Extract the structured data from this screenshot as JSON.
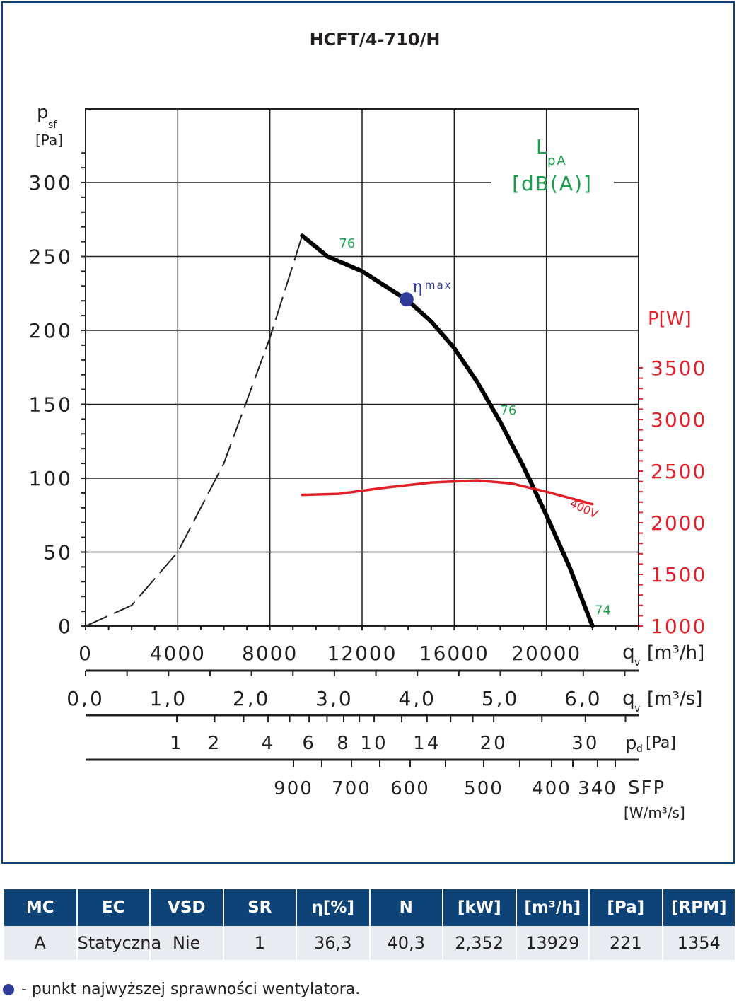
{
  "chart_data": {
    "type": "line",
    "title": "HCFT/4-710/H",
    "y_axis": {
      "label_main": "p",
      "label_sub": "sf",
      "unit": "[Pa]",
      "range": [
        0,
        300
      ],
      "ticks": [
        "0",
        "50",
        "100",
        "150",
        "200",
        "250",
        "300"
      ]
    },
    "x_axis": {
      "label_main": "q",
      "label_sub": "v",
      "unit": "[m³/h]",
      "range": [
        0,
        24000
      ],
      "ticks": [
        "0",
        "4000",
        "8000",
        "12000",
        "16000",
        "20000"
      ]
    },
    "power_axis": {
      "label": "P[W]",
      "range": [
        1000,
        3500
      ],
      "ticks": [
        "1000",
        "1500",
        "2000",
        "2500",
        "3000",
        "3500"
      ]
    },
    "sound_label": {
      "line1": "L",
      "sub": "pA",
      "line2": "[dB(A)]"
    },
    "series": [
      {
        "kind": "pressure-curve",
        "points": [
          [
            9400,
            264
          ],
          [
            10500,
            250
          ],
          [
            12000,
            240
          ],
          [
            13000,
            230
          ],
          [
            14000,
            220
          ],
          [
            15000,
            206
          ],
          [
            16000,
            188
          ],
          [
            17000,
            165
          ],
          [
            18000,
            138
          ],
          [
            19000,
            108
          ],
          [
            20000,
            75
          ],
          [
            21000,
            40
          ],
          [
            22000,
            0
          ]
        ]
      },
      {
        "kind": "system-curve",
        "points": [
          [
            0,
            0
          ],
          [
            2000,
            14
          ],
          [
            4000,
            50
          ],
          [
            6000,
            110
          ],
          [
            8000,
            195
          ],
          [
            9400,
            264
          ]
        ]
      },
      {
        "name": "400V",
        "kind": "power-curve",
        "points": [
          [
            9400,
            2270
          ],
          [
            11000,
            2280
          ],
          [
            13000,
            2340
          ],
          [
            15000,
            2390
          ],
          [
            17000,
            2410
          ],
          [
            18500,
            2380
          ],
          [
            20000,
            2300
          ],
          [
            22000,
            2180
          ]
        ]
      }
    ],
    "sound_levels": [
      {
        "x": 11000,
        "y": 256,
        "label": "76"
      },
      {
        "x": 18000,
        "y": 143,
        "label": "76"
      },
      {
        "x": 22100,
        "y": 8,
        "label": "74"
      }
    ],
    "eta_max": {
      "x": 13929,
      "y": 221,
      "label": "η",
      "label_sub": "max"
    },
    "secondary_scales": [
      {
        "id": "qv-m3s",
        "label_main": "q",
        "label_sub": "v",
        "unit": "[m³/s]",
        "ticks": [
          {
            "value": 0,
            "label": "0,0"
          },
          {
            "value": 1,
            "label": "1,0"
          },
          {
            "value": 2,
            "label": "2,0"
          },
          {
            "value": 3,
            "label": "3,0"
          },
          {
            "value": 4,
            "label": "4,0"
          },
          {
            "value": 5,
            "label": "5,0"
          },
          {
            "value": 6,
            "label": "6,0"
          }
        ]
      },
      {
        "id": "pd",
        "label_main": "p",
        "label_sub": "d",
        "unit": "[Pa]",
        "ticks": [
          {
            "value": 1,
            "label": "1"
          },
          {
            "value": 2,
            "label": "2"
          },
          {
            "value": 4,
            "label": "4"
          },
          {
            "value": 6,
            "label": "6"
          },
          {
            "value": 8,
            "label": "8"
          },
          {
            "value": 10,
            "label": "10"
          },
          {
            "value": 14,
            "label": "14"
          },
          {
            "value": 20,
            "label": "20"
          },
          {
            "value": 30,
            "label": "30"
          }
        ]
      },
      {
        "id": "sfp",
        "label_main": "SFP",
        "unit": "[W/m³/s]",
        "ticks": [
          {
            "value": 900,
            "label": "900"
          },
          {
            "value": 700,
            "label": "700"
          },
          {
            "value": 600,
            "label": "600"
          },
          {
            "value": 500,
            "label": "500"
          },
          {
            "value": 400,
            "label": "400"
          },
          {
            "value": 340,
            "label": "340"
          }
        ]
      }
    ],
    "grid": true
  },
  "table": {
    "headers": [
      "MC",
      "EC",
      "VSD",
      "SR",
      "η[%]",
      "N",
      "[kW]",
      "[m³/h]",
      "[Pa]",
      "[RPM]"
    ],
    "row": [
      "A",
      "Statyczna",
      "Nie",
      "1",
      "36,3",
      "40,3",
      "2,352",
      "13929",
      "221",
      "1354"
    ]
  },
  "footnote": "- punkt najwyższej sprawności wentylatora.",
  "colors": {
    "pressure": "#000000",
    "power": "#e3202a",
    "sound": "#1a9e4b",
    "eta": "#2f3c99",
    "header": "#0d4377"
  }
}
